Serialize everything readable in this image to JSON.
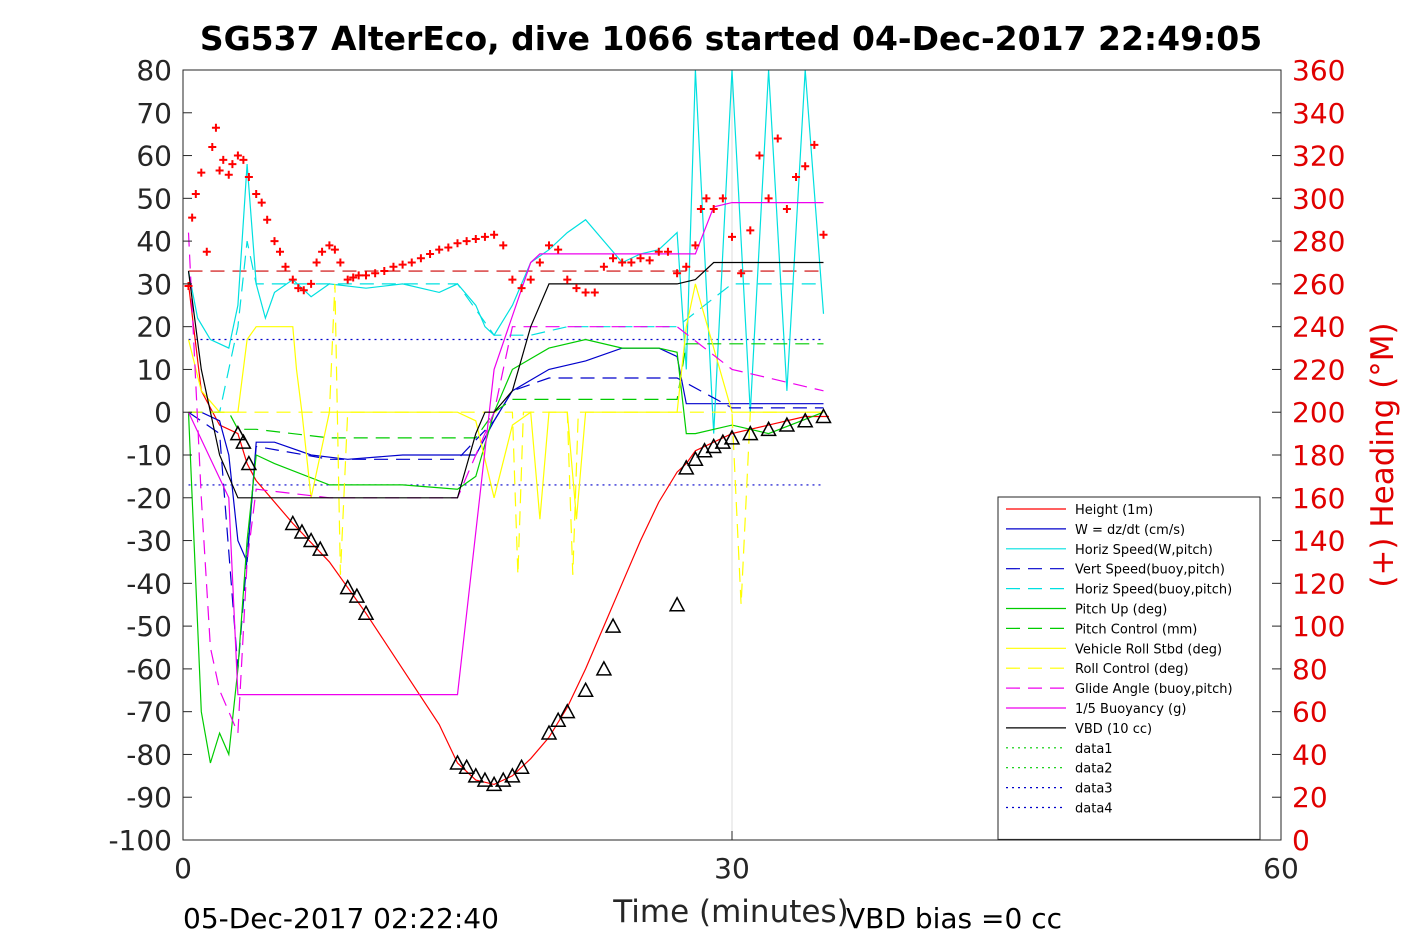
{
  "chart_data": {
    "type": "line",
    "title": "SG537 AlterEco, dive 1066 started 04-Dec-2017 22:49:05",
    "xlabel": "Time (minutes)",
    "ylabel": "",
    "y2label": "(+) Heading (°M)",
    "xlim": [
      0,
      60
    ],
    "ylim": [
      -100,
      80
    ],
    "y2lim": [
      0,
      360
    ],
    "x_ticks": [
      "0",
      "30",
      "60"
    ],
    "y_ticks": [
      "80",
      "70",
      "60",
      "50",
      "40",
      "30",
      "20",
      "10",
      "0",
      "-10",
      "-20",
      "-30",
      "-40",
      "-50",
      "-60",
      "-70",
      "-80",
      "-90",
      "-100"
    ],
    "y2_ticks": [
      "360",
      "340",
      "320",
      "300",
      "280",
      "260",
      "240",
      "220",
      "200",
      "180",
      "160",
      "140",
      "120",
      "100",
      "80",
      "60",
      "40",
      "20",
      "0"
    ],
    "grid": "x-only",
    "legend_position": "lower-right",
    "footer_left": "05-Dec-2017 02:22:40",
    "footer_right": "VBD bias =0 cc",
    "series": [
      {
        "name": "Height (1m)",
        "color": "#ff0000",
        "style": "solid",
        "x": [
          0.3,
          1,
          2,
          3,
          3.5,
          4,
          6,
          8,
          10,
          12,
          14,
          15,
          16,
          17,
          18,
          19,
          20,
          21,
          22,
          23,
          24,
          25,
          26,
          27,
          27.5,
          28,
          30,
          32,
          34,
          35.3
        ],
        "y": [
          30,
          5,
          -3,
          -5,
          -12,
          -16,
          -26,
          -35,
          -47,
          -60,
          -73,
          -82,
          -86,
          -87,
          -85,
          -81,
          -76,
          -69,
          -60,
          -50,
          -40,
          -30,
          -21,
          -14,
          -12,
          -9,
          -5,
          -3,
          -1,
          -1
        ]
      },
      {
        "name": "W = dz/dt (cm/s)",
        "color": "#0000cc",
        "style": "solid",
        "x": [
          0.3,
          1,
          2,
          2.5,
          3,
          3.5,
          4,
          5,
          7,
          9,
          12,
          15,
          16,
          17,
          18,
          20,
          22,
          24,
          26,
          27,
          27.5,
          28,
          30,
          32,
          35
        ],
        "y": [
          0,
          0,
          -2,
          -10,
          -30,
          -35,
          -7,
          -7,
          -10,
          -11,
          -10,
          -10,
          -10,
          -2,
          5,
          10,
          12,
          15,
          15,
          13,
          2,
          2,
          2,
          2,
          2
        ]
      },
      {
        "name": "Horiz Speed(W,pitch)",
        "color": "#00e0e0",
        "style": "solid",
        "x": [
          0.3,
          0.8,
          1.5,
          2.5,
          3,
          3.5,
          4,
          4.5,
          5,
          6,
          7,
          8,
          10,
          12,
          14,
          15,
          16,
          16.5,
          17,
          18,
          19,
          20,
          21,
          22,
          23,
          24,
          25,
          26,
          27,
          27.5,
          28,
          29,
          30,
          31,
          32,
          33,
          34,
          35
        ],
        "y": [
          33,
          22,
          17,
          15,
          25,
          58,
          30,
          22,
          28,
          31,
          27,
          30,
          29,
          30,
          28,
          30,
          25,
          20,
          18,
          25,
          35,
          38,
          42,
          45,
          40,
          35,
          37,
          38,
          42,
          10,
          80,
          -5,
          80,
          0,
          80,
          5,
          80,
          23
        ]
      },
      {
        "name": "Vert Speed(buoy,pitch)",
        "color": "#0000cc",
        "style": "dashed",
        "x": [
          0.3,
          2,
          3,
          4,
          8,
          15,
          17,
          18,
          20,
          22,
          25,
          27,
          30,
          35
        ],
        "y": [
          0,
          -5,
          -60,
          -8,
          -11,
          -11,
          -2,
          5,
          8,
          8,
          8,
          8,
          1,
          1
        ]
      },
      {
        "name": "Horiz Speed(buoy,pitch)",
        "color": "#00e0e0",
        "style": "dashed",
        "x": [
          0.3,
          2,
          3,
          3.5,
          4,
          8,
          15,
          17,
          19,
          21,
          25,
          27,
          30,
          35
        ],
        "y": [
          0,
          0,
          20,
          40,
          30,
          30,
          30,
          18,
          18,
          20,
          20,
          20,
          30,
          30
        ]
      },
      {
        "name": "Pitch Up (deg)",
        "color": "#00cc00",
        "style": "solid",
        "x": [
          0.3,
          1,
          1.5,
          2,
          2.5,
          3,
          3.5,
          4,
          5,
          8,
          12,
          15,
          16,
          17,
          18,
          20,
          22,
          24,
          26,
          27,
          27.5,
          28,
          30,
          32,
          35
        ],
        "y": [
          0,
          -70,
          -82,
          -75,
          -80,
          -60,
          -30,
          -10,
          -12,
          -17,
          -17,
          -18,
          -15,
          0,
          10,
          15,
          17,
          15,
          15,
          14,
          -5,
          -5,
          -3,
          -5,
          0
        ]
      },
      {
        "name": "Pitch Control (mm)",
        "color": "#00cc00",
        "style": "dashed",
        "x": [
          0.3,
          2.5,
          3,
          4,
          8,
          15,
          16,
          17,
          18,
          20,
          27,
          27.5,
          35
        ],
        "y": [
          0,
          0,
          -4,
          -4,
          -6,
          -6,
          -6,
          0,
          3,
          3,
          3,
          16,
          16
        ]
      },
      {
        "name": "Vehicle Roll Stbd (deg)",
        "color": "#ffff00",
        "style": "solid",
        "x": [
          0.3,
          1,
          2,
          3,
          3.5,
          4,
          6,
          6.2,
          6.5,
          7,
          8,
          10,
          12,
          14,
          15,
          16,
          17,
          18,
          19,
          19.5,
          20,
          21,
          21.5,
          22,
          24,
          26,
          27,
          27.5,
          28,
          30,
          32,
          35
        ],
        "y": [
          17,
          5,
          0,
          0,
          17,
          20,
          20,
          10,
          0,
          -20,
          0,
          0,
          0,
          0,
          0,
          -2,
          -20,
          -3,
          0,
          -25,
          0,
          0,
          -25,
          0,
          0,
          0,
          0,
          20,
          30,
          0,
          0,
          0
        ]
      },
      {
        "name": "Roll Control (deg)",
        "color": "#ffff00",
        "style": "dashed",
        "x": [
          0.3,
          3,
          4,
          8,
          8.3,
          8.6,
          9,
          15,
          17,
          18,
          18.3,
          18.6,
          19,
          21,
          21.3,
          21.6,
          22,
          27,
          28,
          30,
          30.5,
          31,
          35
        ],
        "y": [
          0,
          0,
          0,
          0,
          30,
          -38,
          0,
          0,
          0,
          0,
          -38,
          0,
          0,
          0,
          -38,
          0,
          0,
          0,
          0,
          0,
          -45,
          0,
          0
        ]
      },
      {
        "name": "Glide Angle (buoy,pitch)",
        "color": "#ee00ee",
        "style": "dashed",
        "x": [
          0.3,
          1,
          1.5,
          2,
          2.5,
          3,
          3.5,
          4,
          8,
          15,
          17,
          18,
          20,
          27,
          30,
          35
        ],
        "y": [
          42,
          -20,
          -55,
          -65,
          -70,
          -75,
          -35,
          -18,
          -20,
          -20,
          0,
          20,
          20,
          20,
          10,
          5
        ]
      },
      {
        "name": "1/5 Buoyancy (g)",
        "color": "#ee00ee",
        "style": "solid",
        "x": [
          0.3,
          2.5,
          3,
          15,
          17,
          19,
          19.5,
          28,
          29,
          30,
          35
        ],
        "y": [
          0,
          -20,
          -66,
          -66,
          10,
          35,
          37,
          37,
          48,
          49,
          49
        ]
      },
      {
        "name": "VBD (10 cc)",
        "color": "#000000",
        "style": "solid",
        "x": [
          0.3,
          1,
          2,
          3,
          15,
          16,
          16.5,
          17,
          18,
          19,
          20,
          21,
          22,
          27,
          28,
          29,
          35
        ],
        "y": [
          33,
          10,
          -10,
          -20,
          -20,
          -5,
          0,
          0,
          5,
          20,
          30,
          30,
          30,
          30,
          31,
          35,
          35
        ]
      },
      {
        "name": "data1",
        "color": "#00cc00",
        "style": "dotted",
        "x": [],
        "y": []
      },
      {
        "name": "data2",
        "color": "#00cc00",
        "style": "dotted",
        "x": [],
        "y": []
      },
      {
        "name": "data3",
        "color": "#0000cc",
        "style": "dotted",
        "x": [],
        "y": []
      },
      {
        "name": "data4",
        "color": "#0000cc",
        "style": "dotted",
        "x": [],
        "y": []
      }
    ],
    "reference_lines": [
      {
        "axis": "y",
        "value": 17,
        "color": "#0000cc",
        "style": "dotted",
        "x_range": [
          0.3,
          35
        ]
      },
      {
        "axis": "y",
        "value": -17,
        "color": "#0000cc",
        "style": "dotted",
        "x_range": [
          0.3,
          35
        ]
      },
      {
        "axis": "y2",
        "value": 266,
        "color": "#cc0000",
        "style": "dashed",
        "x_range": [
          0.3,
          35
        ]
      }
    ],
    "heading_points": {
      "color": "#ff0000",
      "marker": "+",
      "x": [
        0.3,
        0.5,
        0.7,
        1,
        1.3,
        1.6,
        1.8,
        2,
        2.2,
        2.5,
        2.7,
        3,
        3.3,
        3.6,
        4,
        4.3,
        4.6,
        5,
        5.3,
        5.6,
        6,
        6.3,
        6.6,
        7,
        7.3,
        7.6,
        8,
        8.3,
        8.6,
        9,
        9.3,
        9.6,
        10,
        10.5,
        11,
        11.5,
        12,
        12.5,
        13,
        13.5,
        14,
        14.5,
        15,
        15.5,
        16,
        16.5,
        17,
        17.5,
        18,
        18.5,
        19,
        19.5,
        20,
        20.5,
        21,
        21.5,
        22,
        22.5,
        23,
        23.5,
        24,
        24.5,
        25,
        25.5,
        26,
        26.5,
        27,
        27.5,
        28,
        28.3,
        28.6,
        29,
        29.5,
        30,
        30.5,
        31,
        31.5,
        32,
        32.5,
        33,
        33.5,
        34,
        34.5,
        35
      ],
      "y": [
        259,
        291,
        302,
        312,
        275,
        324,
        333,
        313,
        318,
        311,
        316,
        320,
        318,
        310,
        302,
        298,
        290,
        280,
        275,
        268,
        262,
        258,
        257,
        260,
        270,
        275,
        278,
        276,
        270,
        262,
        263,
        264,
        264,
        265,
        266,
        268,
        269,
        270,
        272,
        274,
        276,
        277,
        279,
        280,
        281,
        282,
        283,
        278,
        262,
        258,
        262,
        270,
        278,
        276,
        262,
        258,
        256,
        256,
        268,
        272,
        270,
        270,
        272,
        271,
        275,
        275,
        265,
        268,
        278,
        295,
        300,
        295,
        300,
        282,
        265,
        285,
        320,
        300,
        328,
        295,
        310,
        315,
        325,
        283
      ]
    },
    "triangle_markers": {
      "color": "#000000",
      "x": [
        3,
        3.3,
        3.6,
        6,
        6.5,
        7,
        7.5,
        9,
        9.5,
        10,
        15,
        15.5,
        16,
        16.5,
        17,
        17.5,
        18,
        18.5,
        20,
        20.5,
        21,
        22,
        23,
        23.5,
        27,
        27.5,
        28,
        28.5,
        29,
        29.5,
        30,
        31,
        32,
        33,
        34,
        35
      ],
      "y": [
        -5,
        -7,
        -12,
        -26,
        -28,
        -30,
        -32,
        -41,
        -43,
        -47,
        -82,
        -83,
        -85,
        -86,
        -87,
        -86,
        -85,
        -83,
        -75,
        -72,
        -70,
        -65,
        -60,
        -50,
        -45,
        -13,
        -11,
        -9,
        -8,
        -7,
        -6,
        -5,
        -4,
        -3,
        -2,
        -1
      ]
    }
  }
}
